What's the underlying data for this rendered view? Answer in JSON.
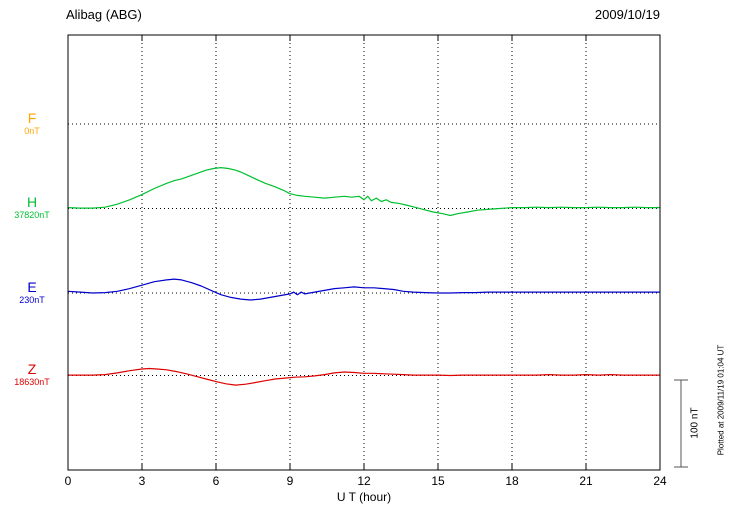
{
  "chart_data": {
    "type": "line",
    "title": "Alibag (ABG)",
    "date": "2009/10/19",
    "xlabel": "U T (hour)",
    "x_range": [
      0,
      24
    ],
    "x_ticks": [
      0,
      3,
      6,
      9,
      12,
      15,
      18,
      21,
      24
    ],
    "x_tick_labels": [
      "0",
      "3",
      "6",
      "9",
      "12",
      "15",
      "18",
      "21",
      "24"
    ],
    "y_unit": "nT deviation from each component baseline",
    "scale_bar": {
      "label": "100 nT",
      "nT": 100
    },
    "plotted_note": "Plotted at 2009/11/19 01:04 UT",
    "grid": "dotted vertical at 3-hour intervals, dotted horizontal at each component baseline",
    "series": [
      {
        "name": "F",
        "baseline": "0nT",
        "color": "#FFA500",
        "visible_trace": false,
        "points": []
      },
      {
        "name": "H",
        "baseline": "37820nT",
        "color": "#00C030",
        "visible_trace": true,
        "points": [
          [
            0,
            1
          ],
          [
            0.5,
            0.5
          ],
          [
            1,
            0.5
          ],
          [
            1.5,
            1.5
          ],
          [
            2,
            5
          ],
          [
            2.5,
            10
          ],
          [
            3,
            16
          ],
          [
            3.5,
            23
          ],
          [
            4,
            29
          ],
          [
            4.3,
            32
          ],
          [
            4.6,
            34
          ],
          [
            5,
            38
          ],
          [
            5.3,
            41
          ],
          [
            5.6,
            44
          ],
          [
            5.9,
            46
          ],
          [
            6.2,
            47
          ],
          [
            6.5,
            46
          ],
          [
            6.8,
            44
          ],
          [
            7,
            42
          ],
          [
            7.3,
            38
          ],
          [
            7.6,
            34
          ],
          [
            8,
            29
          ],
          [
            8.4,
            25
          ],
          [
            8.8,
            20
          ],
          [
            9,
            17
          ],
          [
            9.3,
            15
          ],
          [
            9.6,
            14
          ],
          [
            10,
            13
          ],
          [
            10.4,
            12
          ],
          [
            10.8,
            13
          ],
          [
            11.2,
            14
          ],
          [
            11.5,
            13
          ],
          [
            11.8,
            14
          ],
          [
            12,
            10
          ],
          [
            12.15,
            14
          ],
          [
            12.3,
            9
          ],
          [
            12.5,
            12
          ],
          [
            12.7,
            8
          ],
          [
            12.9,
            10
          ],
          [
            13.1,
            7
          ],
          [
            13.4,
            6
          ],
          [
            13.7,
            4
          ],
          [
            14,
            2
          ],
          [
            14.4,
            -1
          ],
          [
            14.8,
            -4
          ],
          [
            15.2,
            -6
          ],
          [
            15.5,
            -8
          ],
          [
            15.8,
            -6
          ],
          [
            16.2,
            -4
          ],
          [
            16.6,
            -2
          ],
          [
            17,
            -1
          ],
          [
            17.5,
            0
          ],
          [
            18,
            1
          ],
          [
            18.5,
            1
          ],
          [
            19,
            1.5
          ],
          [
            19.5,
            1
          ],
          [
            20,
            1.5
          ],
          [
            20.5,
            1
          ],
          [
            21,
            1
          ],
          [
            21.5,
            1.5
          ],
          [
            22,
            1
          ],
          [
            22.5,
            1
          ],
          [
            23,
            1.5
          ],
          [
            23.5,
            1
          ],
          [
            24,
            1
          ]
        ]
      },
      {
        "name": "E",
        "baseline": "230nT",
        "color": "#0000CC",
        "visible_trace": true,
        "points": [
          [
            0,
            2
          ],
          [
            0.5,
            1
          ],
          [
            1,
            0
          ],
          [
            1.5,
            0.5
          ],
          [
            2,
            2
          ],
          [
            2.5,
            5
          ],
          [
            3,
            9
          ],
          [
            3.5,
            13
          ],
          [
            4,
            15
          ],
          [
            4.3,
            16
          ],
          [
            4.6,
            15
          ],
          [
            5,
            12
          ],
          [
            5.4,
            8
          ],
          [
            5.8,
            3
          ],
          [
            6.2,
            -2
          ],
          [
            6.6,
            -5
          ],
          [
            7,
            -7
          ],
          [
            7.4,
            -8
          ],
          [
            7.8,
            -7
          ],
          [
            8.2,
            -5
          ],
          [
            8.6,
            -3
          ],
          [
            9,
            -1
          ],
          [
            9.15,
            1
          ],
          [
            9.3,
            -2
          ],
          [
            9.45,
            1
          ],
          [
            9.6,
            -1
          ],
          [
            9.8,
            0
          ],
          [
            10,
            1
          ],
          [
            10.4,
            3
          ],
          [
            10.8,
            5
          ],
          [
            11.2,
            6
          ],
          [
            11.6,
            7
          ],
          [
            12,
            6
          ],
          [
            12.4,
            6
          ],
          [
            12.8,
            5
          ],
          [
            13.2,
            4
          ],
          [
            13.6,
            2
          ],
          [
            14,
            1
          ],
          [
            14.5,
            0.5
          ],
          [
            15,
            0
          ],
          [
            15.5,
            0
          ],
          [
            16,
            0.5
          ],
          [
            16.5,
            0.5
          ],
          [
            17,
            1
          ],
          [
            17.5,
            1
          ],
          [
            18,
            1
          ],
          [
            18.5,
            1
          ],
          [
            19,
            1
          ],
          [
            19.5,
            1
          ],
          [
            20,
            1
          ],
          [
            20.5,
            1
          ],
          [
            21,
            1
          ],
          [
            21.5,
            1
          ],
          [
            22,
            1
          ],
          [
            22.5,
            1
          ],
          [
            23,
            1
          ],
          [
            23.5,
            1
          ],
          [
            24,
            1
          ]
        ]
      },
      {
        "name": "Z",
        "baseline": "18630nT",
        "color": "#DD0000",
        "visible_trace": true,
        "points": [
          [
            0,
            0.5
          ],
          [
            0.5,
            0.5
          ],
          [
            1,
            0.5
          ],
          [
            1.5,
            1
          ],
          [
            2,
            3
          ],
          [
            2.5,
            5.5
          ],
          [
            3,
            7.5
          ],
          [
            3.3,
            8
          ],
          [
            3.6,
            7.5
          ],
          [
            4,
            6.5
          ],
          [
            4.4,
            4.5
          ],
          [
            4.8,
            2
          ],
          [
            5.2,
            -1
          ],
          [
            5.6,
            -4
          ],
          [
            6,
            -7
          ],
          [
            6.4,
            -9.5
          ],
          [
            6.8,
            -11
          ],
          [
            7.2,
            -10
          ],
          [
            7.6,
            -8
          ],
          [
            8,
            -6
          ],
          [
            8.4,
            -4
          ],
          [
            8.8,
            -3
          ],
          [
            9.2,
            -2
          ],
          [
            9.6,
            -1.5
          ],
          [
            10,
            -0.5
          ],
          [
            10.4,
            1
          ],
          [
            10.8,
            3
          ],
          [
            11.2,
            4
          ],
          [
            11.6,
            3.5
          ],
          [
            12,
            2.5
          ],
          [
            12.4,
            2.5
          ],
          [
            12.8,
            2
          ],
          [
            13.2,
            1.5
          ],
          [
            13.6,
            1
          ],
          [
            14,
            0.5
          ],
          [
            14.5,
            0.5
          ],
          [
            15,
            0.5
          ],
          [
            15.5,
            0
          ],
          [
            16,
            0.5
          ],
          [
            16.5,
            0.5
          ],
          [
            17,
            0.5
          ],
          [
            17.5,
            0.5
          ],
          [
            18,
            0.5
          ],
          [
            18.5,
            0.5
          ],
          [
            19,
            0.5
          ],
          [
            19.5,
            1
          ],
          [
            20,
            0.5
          ],
          [
            20.5,
            0.5
          ],
          [
            21,
            1
          ],
          [
            21.5,
            0.5
          ],
          [
            22,
            1
          ],
          [
            22.5,
            0.5
          ],
          [
            23,
            0.5
          ],
          [
            23.5,
            0.5
          ],
          [
            24,
            0.5
          ]
        ]
      }
    ]
  }
}
